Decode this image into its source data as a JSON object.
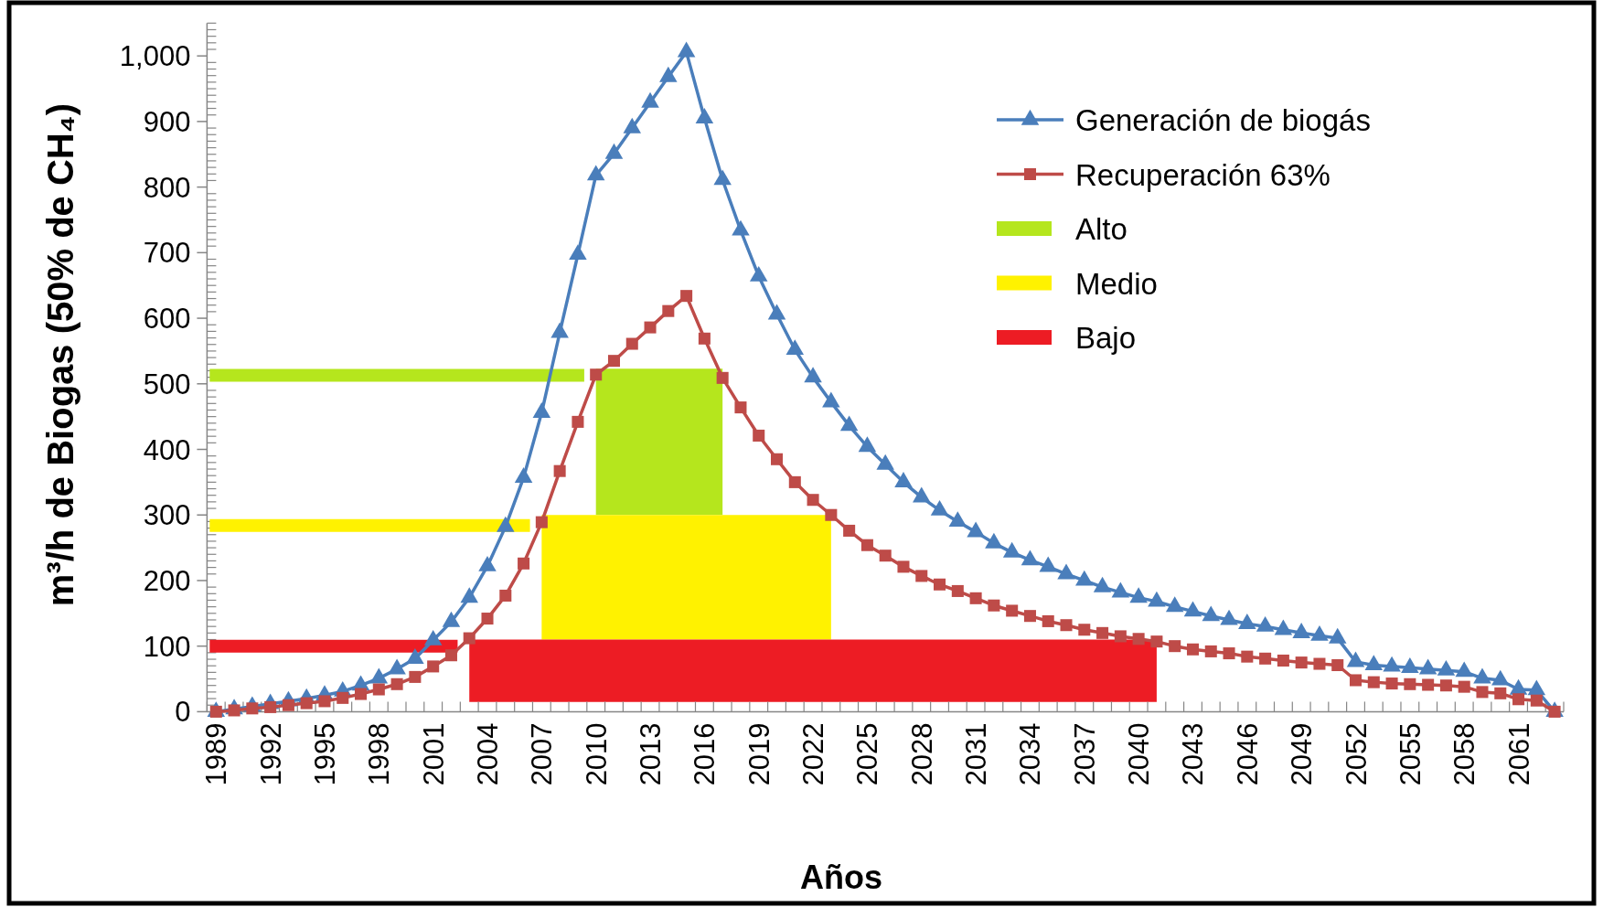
{
  "chart_data": {
    "type": "line",
    "xlabel": "Años",
    "ylabel": "m³/h de Biogas (50% de CH₄)",
    "legend": "top right",
    "categories": [
      "1989",
      null,
      null,
      "1992",
      null,
      null,
      "1995",
      null,
      null,
      "1998",
      null,
      null,
      "2001",
      null,
      null,
      "2004",
      null,
      null,
      "2007",
      null,
      null,
      "2010",
      null,
      null,
      "2013",
      null,
      null,
      "2016",
      null,
      null,
      "2019",
      null,
      null,
      "2022",
      null,
      null,
      "2025",
      null,
      null,
      "2028",
      null,
      null,
      "2031",
      null,
      null,
      "2034",
      null,
      null,
      "2037",
      null,
      null,
      "2040",
      null,
      null,
      "2043",
      null,
      null,
      "2046",
      null,
      null,
      "2049",
      null,
      null,
      "2052",
      null,
      null,
      "2055",
      null,
      null,
      "2058",
      null,
      null,
      "2061",
      null,
      null
    ],
    "ylim": [
      0,
      1050
    ],
    "yticks": [
      0,
      100,
      200,
      300,
      400,
      500,
      600,
      700,
      800,
      900,
      {
        "value": 1000,
        "label": "1,000"
      },
      {
        "value": 10,
        "label": null
      },
      {
        "value": 20,
        "label": null
      },
      {
        "value": 30,
        "label": null
      },
      {
        "value": 40,
        "label": null
      },
      {
        "value": 50,
        "label": null
      },
      {
        "value": 60,
        "label": null
      },
      {
        "value": 70,
        "label": null
      },
      {
        "value": 80,
        "label": null
      },
      {
        "value": 90,
        "label": null
      },
      {
        "value": 110,
        "label": null
      },
      {
        "value": 120,
        "label": null
      },
      {
        "value": 130,
        "label": null
      },
      {
        "value": 140,
        "label": null
      },
      {
        "value": 150,
        "label": null
      },
      {
        "value": 160,
        "label": null
      },
      {
        "value": 170,
        "label": null
      },
      {
        "value": 180,
        "label": null
      },
      {
        "value": 190,
        "label": null
      },
      {
        "value": 210,
        "label": null
      },
      {
        "value": 220,
        "label": null
      },
      {
        "value": 230,
        "label": null
      },
      {
        "value": 240,
        "label": null
      },
      {
        "value": 250,
        "label": null
      },
      {
        "value": 260,
        "label": null
      },
      {
        "value": 270,
        "label": null
      },
      {
        "value": 280,
        "label": null
      },
      {
        "value": 290,
        "label": null
      },
      {
        "value": 310,
        "label": null
      },
      {
        "value": 320,
        "label": null
      },
      {
        "value": 330,
        "label": null
      },
      {
        "value": 340,
        "label": null
      },
      {
        "value": 350,
        "label": null
      },
      {
        "value": 360,
        "label": null
      },
      {
        "value": 370,
        "label": null
      },
      {
        "value": 380,
        "label": null
      },
      {
        "value": 390,
        "label": null
      },
      {
        "value": 410,
        "label": null
      },
      {
        "value": 420,
        "label": null
      },
      {
        "value": 430,
        "label": null
      },
      {
        "value": 440,
        "label": null
      },
      {
        "value": 450,
        "label": null
      },
      {
        "value": 460,
        "label": null
      },
      {
        "value": 470,
        "label": null
      },
      {
        "value": 480,
        "label": null
      },
      {
        "value": 490,
        "label": null
      },
      {
        "value": 510,
        "label": null
      },
      {
        "value": 520,
        "label": null
      },
      {
        "value": 530,
        "label": null
      },
      {
        "value": 540,
        "label": null
      },
      {
        "value": 550,
        "label": null
      },
      {
        "value": 560,
        "label": null
      },
      {
        "value": 570,
        "label": null
      },
      {
        "value": 580,
        "label": null
      },
      {
        "value": 590,
        "label": null
      },
      {
        "value": 610,
        "label": null
      },
      {
        "value": 620,
        "label": null
      },
      {
        "value": 630,
        "label": null
      },
      {
        "value": 640,
        "label": null
      },
      {
        "value": 650,
        "label": null
      },
      {
        "value": 660,
        "label": null
      },
      {
        "value": 670,
        "label": null
      },
      {
        "value": 680,
        "label": null
      },
      {
        "value": 690,
        "label": null
      },
      {
        "value": 710,
        "label": null
      },
      {
        "value": 720,
        "label": null
      },
      {
        "value": 730,
        "label": null
      },
      {
        "value": 740,
        "label": null
      },
      {
        "value": 750,
        "label": null
      },
      {
        "value": 760,
        "label": null
      },
      {
        "value": 770,
        "label": null
      },
      {
        "value": 780,
        "label": null
      },
      {
        "value": 790,
        "label": null
      },
      {
        "value": 810,
        "label": null
      },
      {
        "value": 820,
        "label": null
      },
      {
        "value": 830,
        "label": null
      },
      {
        "value": 840,
        "label": null
      },
      {
        "value": 850,
        "label": null
      },
      {
        "value": 860,
        "label": null
      },
      {
        "value": 870,
        "label": null
      },
      {
        "value": 880,
        "label": null
      },
      {
        "value": 890,
        "label": null
      },
      {
        "value": 910,
        "label": null
      },
      {
        "value": 920,
        "label": null
      },
      {
        "value": 930,
        "label": null
      },
      {
        "value": 940,
        "label": null
      },
      {
        "value": 950,
        "label": null
      },
      {
        "value": 960,
        "label": null
      },
      {
        "value": 970,
        "label": null
      },
      {
        "value": 980,
        "label": null
      },
      {
        "value": 990,
        "label": null
      },
      {
        "value": 1010,
        "label": null
      },
      {
        "value": 1020,
        "label": null
      },
      {
        "value": 1030,
        "label": null
      },
      {
        "value": 1040,
        "label": null
      },
      {
        "value": 1050,
        "label": null
      }
    ],
    "series": [
      {
        "name": "Generación de biogás",
        "color": "#4a7ebb",
        "marker": "triangle",
        "values": [
          0,
          4,
          8,
          12,
          16,
          20,
          25,
          31,
          40,
          51,
          65,
          81,
          109,
          137,
          174,
          222,
          282,
          357,
          456,
          578,
          697,
          818,
          851,
          890,
          929,
          968,
          1006,
          905,
          811,
          734,
          664,
          606,
          552,
          510,
          472,
          436,
          404,
          377,
          350,
          327,
          307,
          290,
          274,
          257,
          243,
          231,
          221,
          210,
          200,
          190,
          182,
          174,
          168,
          160,
          153,
          146,
          140,
          134,
          130,
          125,
          120,
          116,
          112,
          76,
          71,
          69,
          67,
          65,
          63,
          61,
          51,
          48,
          34,
          33,
          0
        ]
      },
      {
        "name": "Recuperación 63%",
        "color": "#be4b48",
        "marker": "square",
        "values": [
          0,
          2,
          5,
          7,
          10,
          13,
          16,
          21,
          27,
          34,
          42,
          53,
          69,
          86,
          112,
          142,
          177,
          226,
          289,
          367,
          442,
          514,
          535,
          561,
          586,
          611,
          634,
          569,
          509,
          464,
          421,
          385,
          350,
          323,
          300,
          276,
          254,
          238,
          221,
          207,
          194,
          184,
          173,
          162,
          154,
          146,
          138,
          132,
          125,
          120,
          115,
          111,
          107,
          100,
          95,
          92,
          89,
          84,
          81,
          78,
          75,
          73,
          71,
          48,
          45,
          43,
          42,
          41,
          40,
          38,
          30,
          28,
          19,
          17,
          0
        ]
      },
      {
        "name": "Alto",
        "color": "#b5e61d",
        "marker": "none",
        "values": [
          513,
          513,
          513,
          513,
          513,
          513,
          513,
          513,
          513,
          513,
          513,
          513,
          513,
          513,
          513,
          513,
          513,
          513,
          513,
          513,
          513,
          null,
          null,
          null,
          null,
          null,
          null,
          null,
          null,
          null,
          null,
          null,
          null,
          null,
          null,
          null,
          null,
          null,
          null,
          null,
          null,
          null,
          null,
          null,
          null,
          null,
          null,
          null,
          null,
          null,
          null,
          null,
          null,
          null,
          null,
          null,
          null,
          null,
          null,
          null,
          null,
          null,
          null,
          null,
          null,
          null,
          null,
          null,
          null,
          null,
          null,
          null,
          null,
          null,
          null
        ],
        "lower": [
          null,
          null,
          null,
          null,
          null,
          null,
          null,
          null,
          null,
          null,
          null,
          null,
          null,
          null,
          null,
          null,
          null,
          null,
          null,
          null,
          null,
          300,
          300,
          300,
          300,
          300,
          300,
          300,
          300,
          null,
          null,
          null,
          null,
          null,
          null,
          null,
          null,
          null,
          null,
          null,
          null,
          null,
          null,
          null,
          null,
          null,
          null,
          null,
          null,
          null,
          null,
          null,
          null,
          null,
          null,
          null,
          null,
          null,
          null,
          null,
          null,
          null,
          null,
          null,
          null,
          null,
          null,
          null,
          null,
          null,
          null,
          null,
          null,
          null,
          null
        ],
        "upper": [
          null,
          null,
          null,
          null,
          null,
          null,
          null,
          null,
          null,
          null,
          null,
          null,
          null,
          null,
          null,
          null,
          null,
          null,
          null,
          null,
          null,
          523,
          523,
          523,
          523,
          523,
          523,
          523,
          523,
          null,
          null,
          null,
          null,
          null,
          null,
          null,
          null,
          null,
          null,
          null,
          null,
          null,
          null,
          null,
          null,
          null,
          null,
          null,
          null,
          null,
          null,
          null,
          null,
          null,
          null,
          null,
          null,
          null,
          null,
          null,
          null,
          null,
          null,
          null,
          null,
          null,
          null,
          null,
          null,
          null,
          null,
          null,
          null,
          null,
          null
        ]
      },
      {
        "name": "Medio",
        "color": "#fff200",
        "marker": "none",
        "values": [
          284,
          284,
          284,
          284,
          284,
          284,
          284,
          284,
          284,
          284,
          284,
          284,
          284,
          284,
          284,
          284,
          284,
          284,
          null,
          null,
          null,
          null,
          null,
          null,
          null,
          null,
          null,
          null,
          null,
          null,
          null,
          null,
          null,
          null,
          null,
          null,
          null,
          null,
          null,
          null,
          null,
          null,
          null,
          null,
          null,
          null,
          null,
          null,
          null,
          null,
          null,
          null,
          null,
          null,
          null,
          null,
          null,
          null,
          null,
          null,
          null,
          null,
          null,
          null,
          null,
          null,
          null,
          null,
          null,
          null,
          null,
          null,
          null,
          null,
          null
        ],
        "lower": [
          null,
          null,
          null,
          null,
          null,
          null,
          null,
          null,
          null,
          null,
          null,
          null,
          null,
          null,
          null,
          null,
          null,
          null,
          110,
          110,
          110,
          110,
          110,
          110,
          110,
          110,
          110,
          110,
          110,
          110,
          110,
          110,
          110,
          110,
          110,
          null,
          null,
          null,
          null,
          null,
          null,
          null,
          null,
          null,
          null,
          null,
          null,
          null,
          null,
          null,
          null,
          null,
          null,
          null,
          null,
          null,
          null,
          null,
          null,
          null,
          null,
          null,
          null,
          null,
          null,
          null,
          null,
          null,
          null,
          null,
          null,
          null,
          null,
          null,
          null
        ],
        "upper": [
          null,
          null,
          null,
          null,
          null,
          null,
          null,
          null,
          null,
          null,
          null,
          null,
          null,
          null,
          null,
          null,
          null,
          null,
          300,
          300,
          300,
          300,
          300,
          300,
          300,
          300,
          300,
          300,
          300,
          300,
          300,
          300,
          300,
          300,
          300,
          null,
          null,
          null,
          null,
          null,
          null,
          null,
          null,
          null,
          null,
          null,
          null,
          null,
          null,
          null,
          null,
          null,
          null,
          null,
          null,
          null,
          null,
          null,
          null,
          null,
          null,
          null,
          null,
          null,
          null,
          null,
          null,
          null,
          null,
          null,
          null,
          null,
          null,
          null,
          null
        ]
      },
      {
        "name": "Bajo",
        "color": "#ed1c24",
        "marker": "none",
        "values": [
          100,
          100,
          100,
          100,
          100,
          100,
          100,
          100,
          100,
          100,
          100,
          100,
          100,
          100,
          null,
          null,
          null,
          null,
          null,
          null,
          null,
          null,
          null,
          null,
          null,
          null,
          null,
          null,
          null,
          null,
          null,
          null,
          null,
          null,
          null,
          null,
          null,
          null,
          null,
          null,
          null,
          null,
          null,
          null,
          null,
          null,
          null,
          null,
          null,
          null,
          null,
          null,
          null,
          null,
          null,
          null,
          null,
          null,
          null,
          null,
          null,
          null,
          null,
          null,
          null,
          null,
          null,
          null,
          null,
          null,
          null,
          null,
          null,
          null,
          null
        ],
        "lower": [
          null,
          null,
          null,
          null,
          null,
          null,
          null,
          null,
          null,
          null,
          null,
          null,
          null,
          null,
          15,
          15,
          15,
          15,
          15,
          15,
          15,
          15,
          15,
          15,
          15,
          15,
          15,
          15,
          15,
          15,
          15,
          15,
          15,
          15,
          15,
          15,
          15,
          15,
          15,
          15,
          15,
          15,
          15,
          15,
          15,
          15,
          15,
          15,
          15,
          15,
          15,
          15,
          15,
          null,
          null,
          null,
          null,
          null,
          null,
          null,
          null,
          null,
          null,
          null,
          null,
          null,
          null,
          null,
          null,
          null,
          null,
          null,
          null,
          null,
          null
        ],
        "upper": [
          null,
          null,
          null,
          null,
          null,
          null,
          null,
          null,
          null,
          null,
          null,
          null,
          null,
          null,
          110,
          110,
          110,
          110,
          110,
          110,
          110,
          110,
          110,
          110,
          110,
          110,
          110,
          110,
          110,
          110,
          110,
          110,
          110,
          110,
          110,
          110,
          110,
          110,
          110,
          110,
          110,
          110,
          110,
          110,
          110,
          110,
          110,
          110,
          110,
          110,
          110,
          110,
          110,
          null,
          null,
          null,
          null,
          null,
          null,
          null,
          null,
          null,
          null,
          null,
          null,
          null,
          null,
          null,
          null,
          null,
          null,
          null,
          null,
          null,
          null
        ]
      }
    ]
  }
}
